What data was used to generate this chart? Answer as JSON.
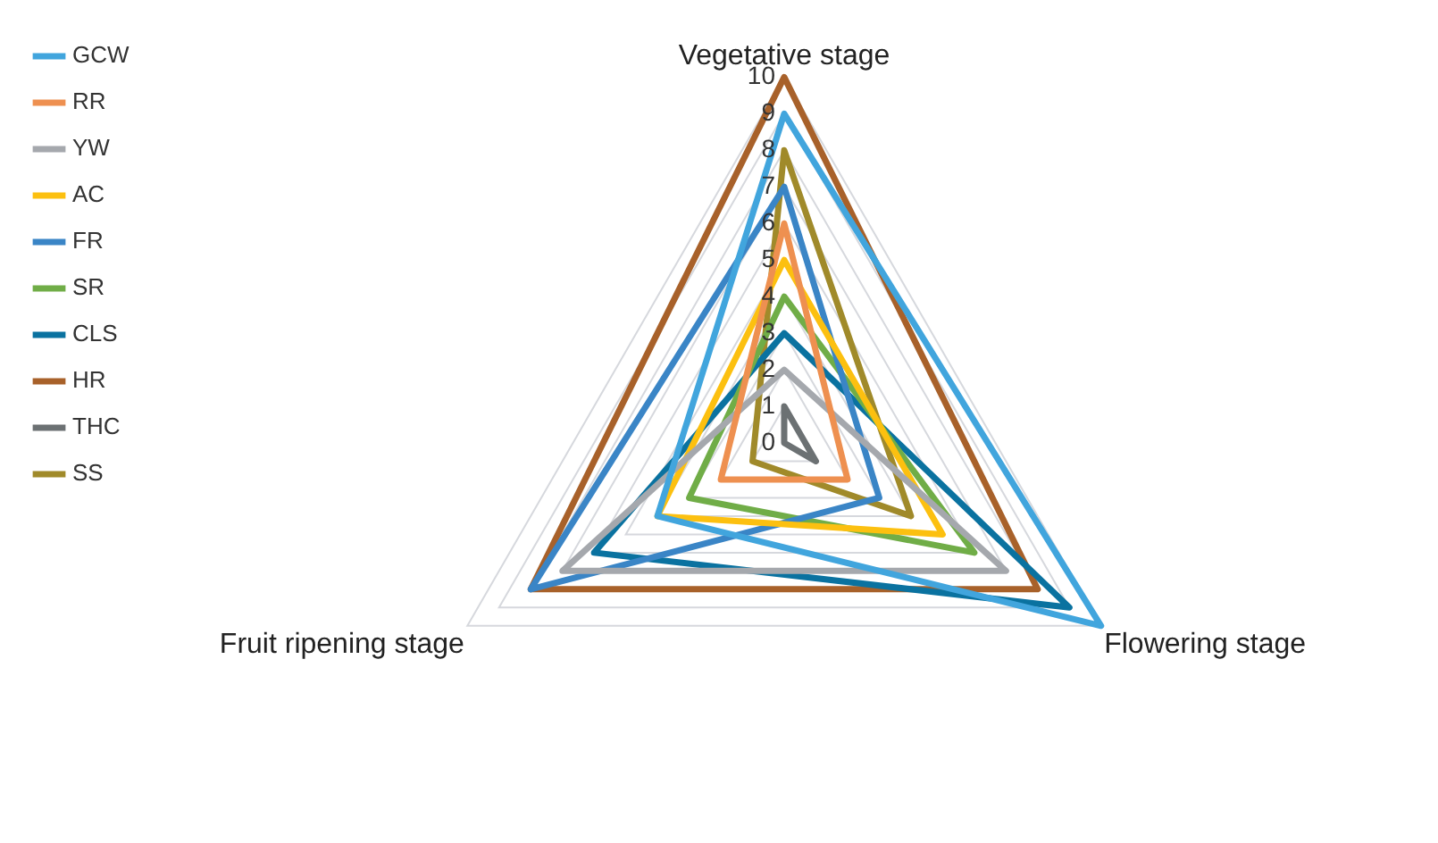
{
  "chart_data": {
    "type": "radar",
    "categories": [
      "Vegetative stage",
      "Flowering stage",
      "Fruit ripening stage"
    ],
    "ylim": [
      0,
      10
    ],
    "yticks": [
      0,
      1,
      2,
      3,
      4,
      5,
      6,
      7,
      8,
      9,
      10
    ],
    "grid": true,
    "legend": "top left",
    "marker": "none",
    "line_style": "solid",
    "series": [
      {
        "name": "GCW",
        "color": "#41a5dd",
        "values": [
          9,
          10,
          4
        ]
      },
      {
        "name": "RR",
        "color": "#ee9050",
        "values": [
          6,
          2,
          2
        ]
      },
      {
        "name": "YW",
        "color": "#a5a8ad",
        "values": [
          2,
          7,
          7
        ]
      },
      {
        "name": "AC",
        "color": "#fcc010",
        "values": [
          5,
          5,
          4
        ]
      },
      {
        "name": "FR",
        "color": "#3a85c6",
        "values": [
          7,
          3,
          8
        ]
      },
      {
        "name": "SR",
        "color": "#70ad47",
        "values": [
          4,
          6,
          3
        ]
      },
      {
        "name": "CLS",
        "color": "#0a72a0",
        "values": [
          3,
          9,
          6
        ]
      },
      {
        "name": "HR",
        "color": "#a8612a",
        "values": [
          10,
          8,
          8
        ]
      },
      {
        "name": "THC",
        "color": "#6c7173",
        "values": [
          1,
          1,
          0
        ]
      },
      {
        "name": "SS",
        "color": "#a08a2a",
        "values": [
          8,
          4,
          1
        ]
      }
    ]
  }
}
